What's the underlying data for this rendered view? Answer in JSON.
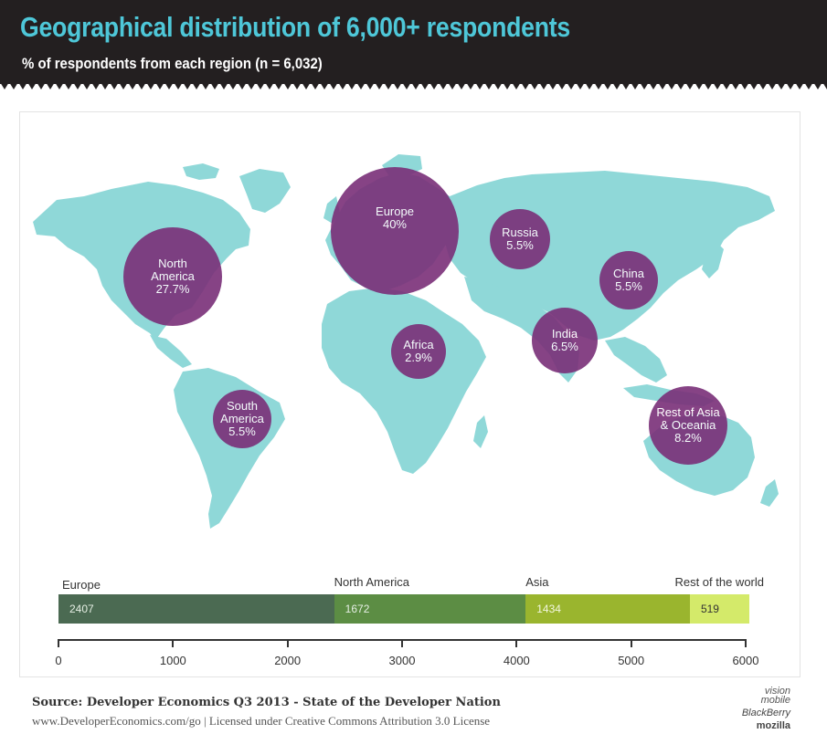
{
  "header": {
    "title": "Geographical distribution of 6,000+ respondents",
    "subtitle": "% of respondents from each region (n = 6,032)"
  },
  "colors": {
    "land": "#8fd8d8",
    "bubble": "#7a2f78",
    "header_bg": "#231f20",
    "title": "#4ec7d8"
  },
  "regions": [
    {
      "label": "North\nAmerica",
      "value": "27.7%"
    },
    {
      "label": "Europe",
      "value": "40%"
    },
    {
      "label": "Russia",
      "value": "5.5%"
    },
    {
      "label": "China",
      "value": "5.5%"
    },
    {
      "label": "India",
      "value": "6.5%"
    },
    {
      "label": "Africa",
      "value": "2.9%"
    },
    {
      "label": "South\nAmerica",
      "value": "5.5%"
    },
    {
      "label": "Rest of Asia\n& Oceania",
      "value": "8.2%"
    }
  ],
  "chart_data": {
    "type": "bar",
    "orientation": "horizontal-stacked",
    "categories": [
      "Europe",
      "North America",
      "Asia",
      "Rest of the world"
    ],
    "values": [
      2407,
      1672,
      1434,
      519
    ],
    "colors": [
      "#4b6a52",
      "#5c8d44",
      "#9ab52e",
      "#d4ea6a"
    ],
    "xlim": [
      0,
      6000
    ],
    "xticks": [
      "0",
      "1000",
      "2000",
      "3000",
      "4000",
      "5000",
      "6000"
    ]
  },
  "footer": {
    "source": "Source: Developer Economics Q3 2013 - State of the Developer Nation",
    "url": "www.DeveloperEconomics.com/go | Licensed under Creative Commons Attribution 3.0 License",
    "logo1": "vision\nmobile",
    "logo2": "BlackBerry",
    "logo3": "mozilla"
  }
}
